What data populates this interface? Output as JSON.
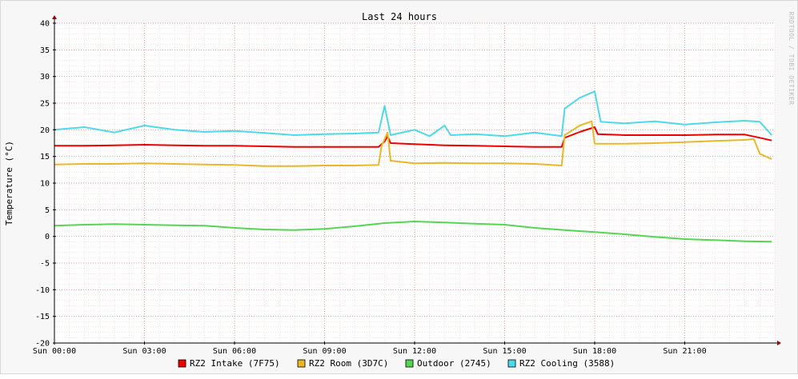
{
  "chart_data": {
    "type": "line",
    "title": "Last 24 hours",
    "ylabel": "Temperature (°C)",
    "watermark": "RRDTOOL / TOBI OETIKER",
    "xlim": [
      0,
      24
    ],
    "ylim": [
      -20,
      40
    ],
    "yticks": [
      -20,
      -15,
      -10,
      -5,
      0,
      5,
      10,
      15,
      20,
      25,
      30,
      35,
      40
    ],
    "xticks": [
      {
        "label": "Sun 00:00",
        "hour": 0
      },
      {
        "label": "Sun 03:00",
        "hour": 3
      },
      {
        "label": "Sun 06:00",
        "hour": 6
      },
      {
        "label": "Sun 09:00",
        "hour": 9
      },
      {
        "label": "Sun 12:00",
        "hour": 12
      },
      {
        "label": "Sun 15:00",
        "hour": 15
      },
      {
        "label": "Sun 18:00",
        "hour": 18
      },
      {
        "label": "Sun 21:00",
        "hour": 21
      }
    ],
    "grid": true,
    "legend_position": "bottom",
    "series": [
      {
        "name": "RZ2 Intake (7F75)",
        "color": "#ee0000",
        "points": [
          [
            0,
            17
          ],
          [
            1,
            17
          ],
          [
            2,
            17.1
          ],
          [
            3,
            17.2
          ],
          [
            4,
            17.1
          ],
          [
            5,
            17
          ],
          [
            6,
            17
          ],
          [
            7,
            16.9
          ],
          [
            8,
            16.8
          ],
          [
            9,
            16.8
          ],
          [
            10,
            16.8
          ],
          [
            10.8,
            16.8
          ],
          [
            11,
            17.8
          ],
          [
            11.1,
            18.8
          ],
          [
            11.2,
            17.5
          ],
          [
            12,
            17.3
          ],
          [
            13,
            17.1
          ],
          [
            14,
            17
          ],
          [
            15,
            16.9
          ],
          [
            16,
            16.8
          ],
          [
            16.9,
            16.8
          ],
          [
            17,
            18.5
          ],
          [
            17.5,
            19.6
          ],
          [
            18,
            20.5
          ],
          [
            18.1,
            19.2
          ],
          [
            19,
            19
          ],
          [
            20,
            19
          ],
          [
            21,
            19
          ],
          [
            22,
            19.1
          ],
          [
            23,
            19.1
          ],
          [
            23.5,
            18.5
          ],
          [
            23.9,
            18
          ]
        ]
      },
      {
        "name": "RZ2 Room (3D7C)",
        "color": "#e8b82a",
        "points": [
          [
            0,
            13.5
          ],
          [
            1,
            13.6
          ],
          [
            2,
            13.6
          ],
          [
            3,
            13.7
          ],
          [
            4,
            13.6
          ],
          [
            5,
            13.5
          ],
          [
            6,
            13.4
          ],
          [
            7,
            13.2
          ],
          [
            8,
            13.2
          ],
          [
            9,
            13.3
          ],
          [
            10,
            13.3
          ],
          [
            10.8,
            13.4
          ],
          [
            10.9,
            17
          ],
          [
            11.1,
            19.5
          ],
          [
            11.2,
            14.2
          ],
          [
            12,
            13.7
          ],
          [
            13,
            13.8
          ],
          [
            14,
            13.7
          ],
          [
            15,
            13.7
          ],
          [
            16,
            13.6
          ],
          [
            16.9,
            13.3
          ],
          [
            17,
            19
          ],
          [
            17.5,
            20.8
          ],
          [
            17.9,
            21.6
          ],
          [
            18,
            17.4
          ],
          [
            19,
            17.4
          ],
          [
            20,
            17.5
          ],
          [
            21,
            17.7
          ],
          [
            22,
            17.9
          ],
          [
            23,
            18.1
          ],
          [
            23.3,
            18.3
          ],
          [
            23.5,
            15.5
          ],
          [
            23.9,
            14.5
          ]
        ]
      },
      {
        "name": "Outdoor (2745)",
        "color": "#54d654",
        "points": [
          [
            0,
            2
          ],
          [
            1,
            2.2
          ],
          [
            2,
            2.3
          ],
          [
            3,
            2.2
          ],
          [
            4,
            2.1
          ],
          [
            5,
            2
          ],
          [
            6,
            1.6
          ],
          [
            7,
            1.3
          ],
          [
            8,
            1.2
          ],
          [
            9,
            1.4
          ],
          [
            10,
            1.9
          ],
          [
            11,
            2.5
          ],
          [
            12,
            2.8
          ],
          [
            13,
            2.6
          ],
          [
            14,
            2.4
          ],
          [
            15,
            2.2
          ],
          [
            16,
            1.6
          ],
          [
            17,
            1.2
          ],
          [
            18,
            0.8
          ],
          [
            19,
            0.4
          ],
          [
            20,
            -0.1
          ],
          [
            21,
            -0.5
          ],
          [
            22,
            -0.7
          ],
          [
            23,
            -0.9
          ],
          [
            23.9,
            -1
          ]
        ]
      },
      {
        "name": "RZ2 Cooling (3588)",
        "color": "#4dd9ea",
        "points": [
          [
            0,
            20
          ],
          [
            1,
            20.5
          ],
          [
            2,
            19.5
          ],
          [
            3,
            20.8
          ],
          [
            4,
            20
          ],
          [
            5,
            19.6
          ],
          [
            6,
            19.8
          ],
          [
            7,
            19.4
          ],
          [
            8,
            19
          ],
          [
            9,
            19.2
          ],
          [
            10,
            19.3
          ],
          [
            10.8,
            19.5
          ],
          [
            11,
            24.5
          ],
          [
            11.2,
            19
          ],
          [
            12,
            20
          ],
          [
            12.5,
            18.8
          ],
          [
            13,
            20.8
          ],
          [
            13.2,
            19
          ],
          [
            14,
            19.2
          ],
          [
            15,
            18.8
          ],
          [
            16,
            19.5
          ],
          [
            16.9,
            18.8
          ],
          [
            17,
            24
          ],
          [
            17.5,
            26
          ],
          [
            18,
            27.2
          ],
          [
            18.2,
            21.5
          ],
          [
            19,
            21.2
          ],
          [
            20,
            21.6
          ],
          [
            21,
            21
          ],
          [
            22,
            21.4
          ],
          [
            23,
            21.7
          ],
          [
            23.5,
            21.5
          ],
          [
            23.9,
            19
          ]
        ]
      }
    ]
  }
}
